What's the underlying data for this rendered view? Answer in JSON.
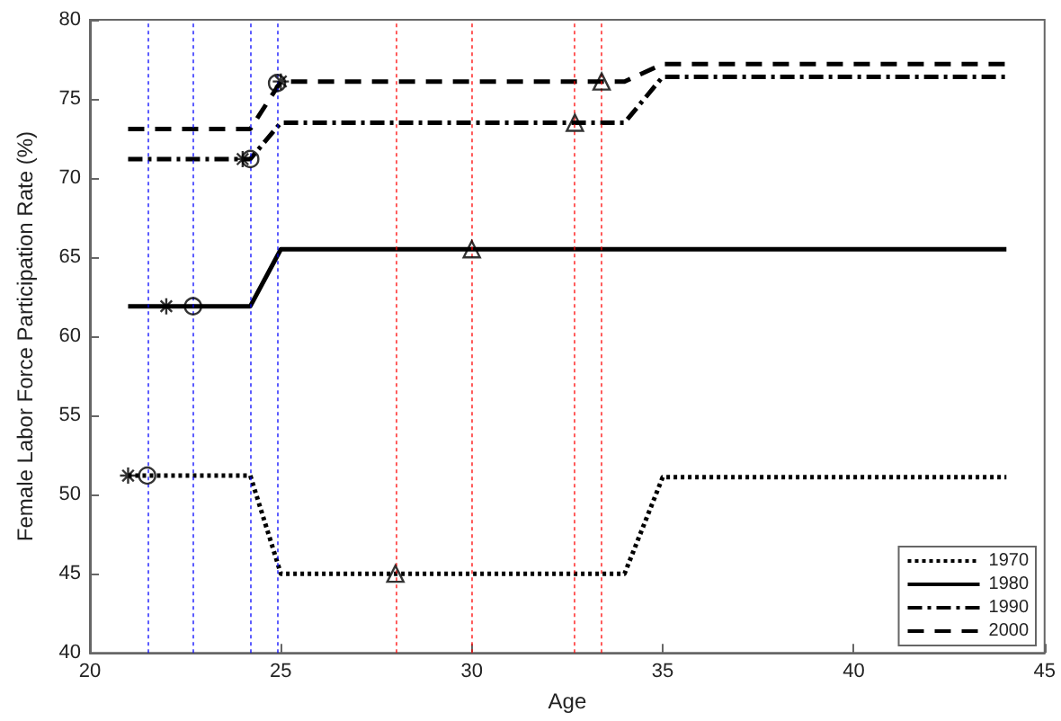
{
  "chart_data": {
    "type": "line",
    "xlabel": "Age",
    "ylabel": "Female Labor Force Participation Rate (%)",
    "xlim": [
      20,
      45
    ],
    "xticks": [
      20,
      25,
      30,
      35,
      40,
      45
    ],
    "ylim": [
      40,
      80
    ],
    "yticks": [
      40,
      45,
      50,
      55,
      60,
      65,
      70,
      75,
      80
    ],
    "grid": false,
    "legend": "bottom right",
    "marker": "none",
    "series": [
      {
        "name": "1970",
        "color": "#000000",
        "line_style": "dotted",
        "x": [
          21,
          24.2,
          25,
          34,
          35,
          44
        ],
        "values": [
          51.2,
          51.2,
          45,
          45,
          51.1,
          51.1
        ]
      },
      {
        "name": "1980",
        "color": "#000000",
        "line_style": "solid",
        "x": [
          21,
          24.2,
          25,
          44
        ],
        "values": [
          61.9,
          61.9,
          65.5,
          65.5
        ]
      },
      {
        "name": "1990",
        "color": "#000000",
        "line_style": "dashdot",
        "x": [
          21,
          24.2,
          25,
          34,
          35,
          44
        ],
        "values": [
          71.2,
          71.2,
          73.5,
          73.5,
          76.4,
          76.4
        ]
      },
      {
        "name": "2000",
        "color": "#000000",
        "line_style": "dashed",
        "x": [
          21,
          24.2,
          25,
          34,
          35,
          44
        ],
        "values": [
          73.1,
          73.1,
          76.1,
          76.1,
          77.2,
          77.2
        ]
      },
      {
        "type": "scatter",
        "marker": "cross",
        "color": "#000000",
        "x": [
          21,
          22,
          24,
          25
        ],
        "values": [
          51.2,
          61.9,
          71.2,
          76.1
        ]
      },
      {
        "type": "scatter",
        "marker": "circle",
        "color": "#000000",
        "x": [
          21.5,
          22.7,
          24.2,
          24.9
        ],
        "values": [
          51.2,
          61.9,
          71.2,
          76.0
        ]
      },
      {
        "type": "scatter",
        "marker": "triangle",
        "color": "#000000",
        "x": [
          28,
          30,
          32.7,
          33.4
        ],
        "values": [
          45,
          65.5,
          73.5,
          76.1
        ]
      }
    ],
    "ref_lines": [
      {
        "axis": "x",
        "value": 21.5,
        "color": "#0000ff",
        "line_style": "dotted"
      },
      {
        "axis": "x",
        "value": 22.7,
        "color": "#0000ff",
        "line_style": "dotted"
      },
      {
        "axis": "x",
        "value": 24.2,
        "color": "#0000ff",
        "line_style": "dotted"
      },
      {
        "axis": "x",
        "value": 24.9,
        "color": "#0000ff",
        "line_style": "dotted"
      },
      {
        "axis": "x",
        "value": 28,
        "color": "#ff0000",
        "line_style": "dotted"
      },
      {
        "axis": "x",
        "value": 30,
        "color": "#ff0000",
        "line_style": "dotted"
      },
      {
        "axis": "x",
        "value": 32.7,
        "color": "#ff0000",
        "line_style": "dotted"
      },
      {
        "axis": "x",
        "value": 33.4,
        "color": "#ff0000",
        "line_style": "dotted"
      }
    ]
  }
}
